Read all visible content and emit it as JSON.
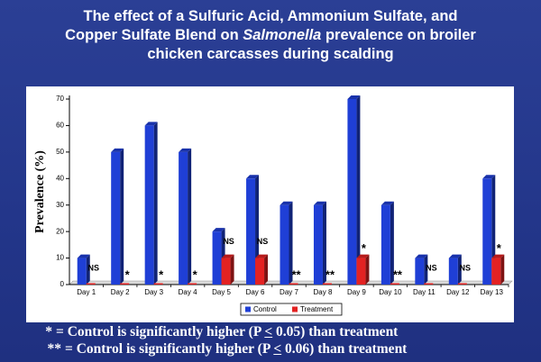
{
  "title": {
    "part1": "The effect of a Sulfuric Acid, Ammonium Sulfate, and",
    "part2": "Copper Sulfate Blend on ",
    "italic": "Salmonella",
    "part3": " prevalence on broiler",
    "part4": "chicken carcasses during scalding"
  },
  "chart_data": {
    "type": "bar",
    "categories": [
      "Day 1",
      "Day 2",
      "Day 3",
      "Day 4",
      "Day 5",
      "Day 6",
      "Day 7",
      "Day 8",
      "Day 9",
      "Day 10",
      "Day 11",
      "Day 12",
      "Day 13"
    ],
    "series": [
      {
        "name": "Control",
        "color": "#1f3fd6",
        "values": [
          10,
          50,
          60,
          50,
          20,
          40,
          30,
          30,
          70,
          30,
          10,
          10,
          40
        ]
      },
      {
        "name": "Treatment",
        "color": "#e32222",
        "values": [
          0,
          0,
          0,
          0,
          10,
          10,
          0,
          0,
          10,
          0,
          0,
          0,
          10
        ]
      }
    ],
    "annotations": [
      "NS",
      "*",
      "*",
      "*",
      "NS",
      "NS",
      "**",
      "**",
      "*",
      "**",
      "NS",
      "NS",
      "*"
    ],
    "ylabel": "Prevalence (%)",
    "xlabel": "",
    "ylim": [
      0,
      70
    ],
    "yticks": [
      0,
      10,
      20,
      30,
      40,
      50,
      60,
      70
    ],
    "grid": false,
    "legend_position": "bottom-center"
  },
  "footnotes": {
    "f1_symbol": "*",
    "f1_text_before": "= Control is significantly higher (P ",
    "f1_underlined": "<",
    "f1_text_after": " 0.05) than treatment",
    "f2_symbol": "**",
    "f2_text_before": "= Control is significantly higher (P ",
    "f2_underlined": "<",
    "f2_text_after": " 0.06) than treatment"
  }
}
